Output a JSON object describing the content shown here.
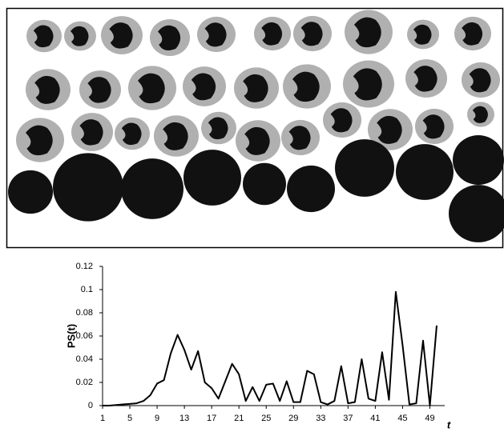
{
  "chart_data": {
    "type": "line",
    "y_label": "PS(t)",
    "x_label": "t",
    "x": [
      1,
      2,
      3,
      4,
      5,
      6,
      7,
      8,
      9,
      10,
      11,
      12,
      13,
      14,
      15,
      16,
      17,
      18,
      19,
      20,
      21,
      22,
      23,
      24,
      25,
      26,
      27,
      28,
      29,
      30,
      31,
      32,
      33,
      34,
      35,
      36,
      37,
      38,
      39,
      40,
      41,
      42,
      43,
      44,
      45,
      46,
      47,
      48,
      49,
      50
    ],
    "series": [
      {
        "color": "#000000",
        "values": [
          0,
          0,
          0.0005,
          0.001,
          0.0015,
          0.002,
          0.004,
          0.009,
          0.019,
          0.022,
          0.045,
          0.061,
          0.048,
          0.031,
          0.047,
          0.02,
          0.015,
          0.006,
          0.021,
          0.036,
          0.027,
          0.004,
          0.016,
          0.004,
          0.018,
          0.019,
          0.004,
          0.021,
          0.003,
          0.003,
          0.03,
          0.027,
          0.003,
          0.001,
          0.004,
          0.034,
          0.002,
          0.003,
          0.04,
          0.006,
          0.004,
          0.046,
          0.005,
          0.098,
          0.052,
          0.001,
          0.002,
          0.056,
          0,
          0.069
        ]
      }
    ],
    "xlim": [
      1,
      50
    ],
    "xticks": [
      1,
      5,
      9,
      13,
      17,
      21,
      25,
      29,
      33,
      37,
      41,
      45,
      49
    ],
    "ylim": [
      0,
      0.12
    ],
    "yticks": [
      0,
      0.02,
      0.04,
      0.06,
      0.08,
      0.1,
      0.12
    ]
  }
}
